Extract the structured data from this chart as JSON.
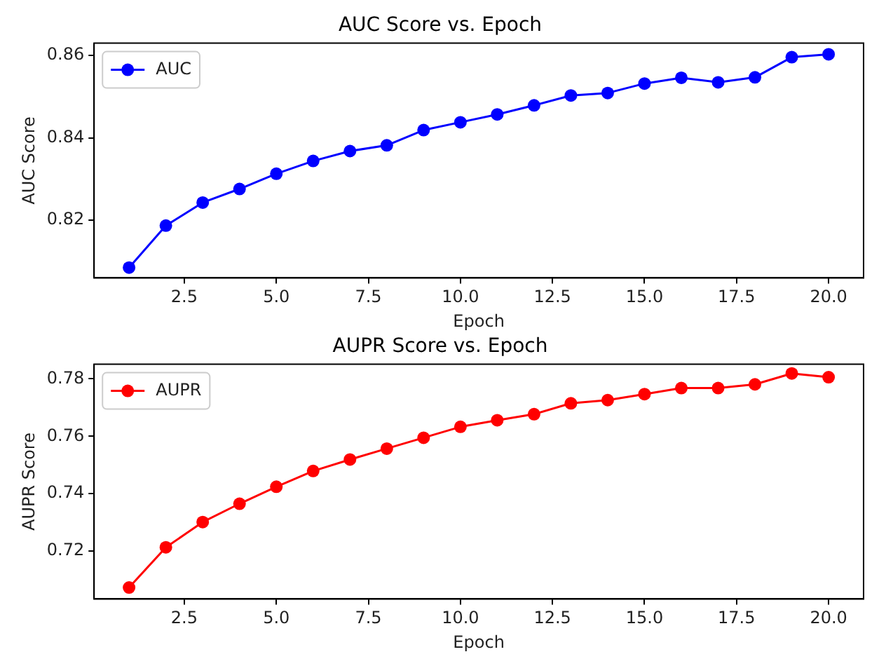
{
  "chart_data": [
    {
      "type": "line",
      "title": "AUC Score vs. Epoch",
      "xlabel": "Epoch",
      "ylabel": "AUC Score",
      "x": [
        1,
        2,
        3,
        4,
        5,
        6,
        7,
        8,
        9,
        10,
        11,
        12,
        13,
        14,
        15,
        16,
        17,
        18,
        19,
        20
      ],
      "series": [
        {
          "name": "AUC",
          "color": "#0000ff",
          "values": [
            0.8085,
            0.8187,
            0.8243,
            0.8276,
            0.8313,
            0.8344,
            0.8368,
            0.8382,
            0.8419,
            0.8438,
            0.8457,
            0.8479,
            0.8503,
            0.8509,
            0.8532,
            0.8546,
            0.8535,
            0.8547,
            0.8596,
            0.8603
          ]
        }
      ],
      "xlim": [
        0.05,
        20.95
      ],
      "xticks": [
        2.5,
        {
          "value": 5,
          "label": "5.0"
        },
        7.5,
        {
          "value": 10,
          "label": "10.0"
        },
        12.5,
        {
          "value": 15,
          "label": "15.0"
        },
        17.5,
        {
          "value": 20,
          "label": "20.0"
        }
      ],
      "ylim": [
        0.806,
        0.863
      ],
      "yticks": [
        0.82,
        0.84,
        0.86
      ],
      "grid": false,
      "legend": "top left",
      "marker": "circle",
      "line_style": "solid"
    },
    {
      "type": "line",
      "title": "AUPR Score vs. Epoch",
      "xlabel": "Epoch",
      "ylabel": "AUPR Score",
      "x": [
        1,
        2,
        3,
        4,
        5,
        6,
        7,
        8,
        9,
        10,
        11,
        12,
        13,
        14,
        15,
        16,
        17,
        18,
        19,
        20
      ],
      "series": [
        {
          "name": "AUPR",
          "color": "#ff0000",
          "values": [
            0.7073,
            0.7213,
            0.7301,
            0.7365,
            0.7424,
            0.7479,
            0.7519,
            0.7557,
            0.7595,
            0.7633,
            0.7656,
            0.7677,
            0.7715,
            0.7726,
            0.7747,
            0.7768,
            0.7768,
            0.7781,
            0.7819,
            0.7806
          ]
        }
      ],
      "xlim": [
        0.05,
        20.95
      ],
      "xticks": [
        2.5,
        {
          "value": 5,
          "label": "5.0"
        },
        7.5,
        {
          "value": 10,
          "label": "10.0"
        },
        12.5,
        {
          "value": 15,
          "label": "15.0"
        },
        17.5,
        {
          "value": 20,
          "label": "20.0"
        }
      ],
      "ylim": [
        0.7033,
        0.7851
      ],
      "yticks": [
        0.72,
        0.74,
        0.76,
        0.78
      ],
      "grid": false,
      "legend": "top left",
      "marker": "circle",
      "line_style": "solid"
    }
  ]
}
